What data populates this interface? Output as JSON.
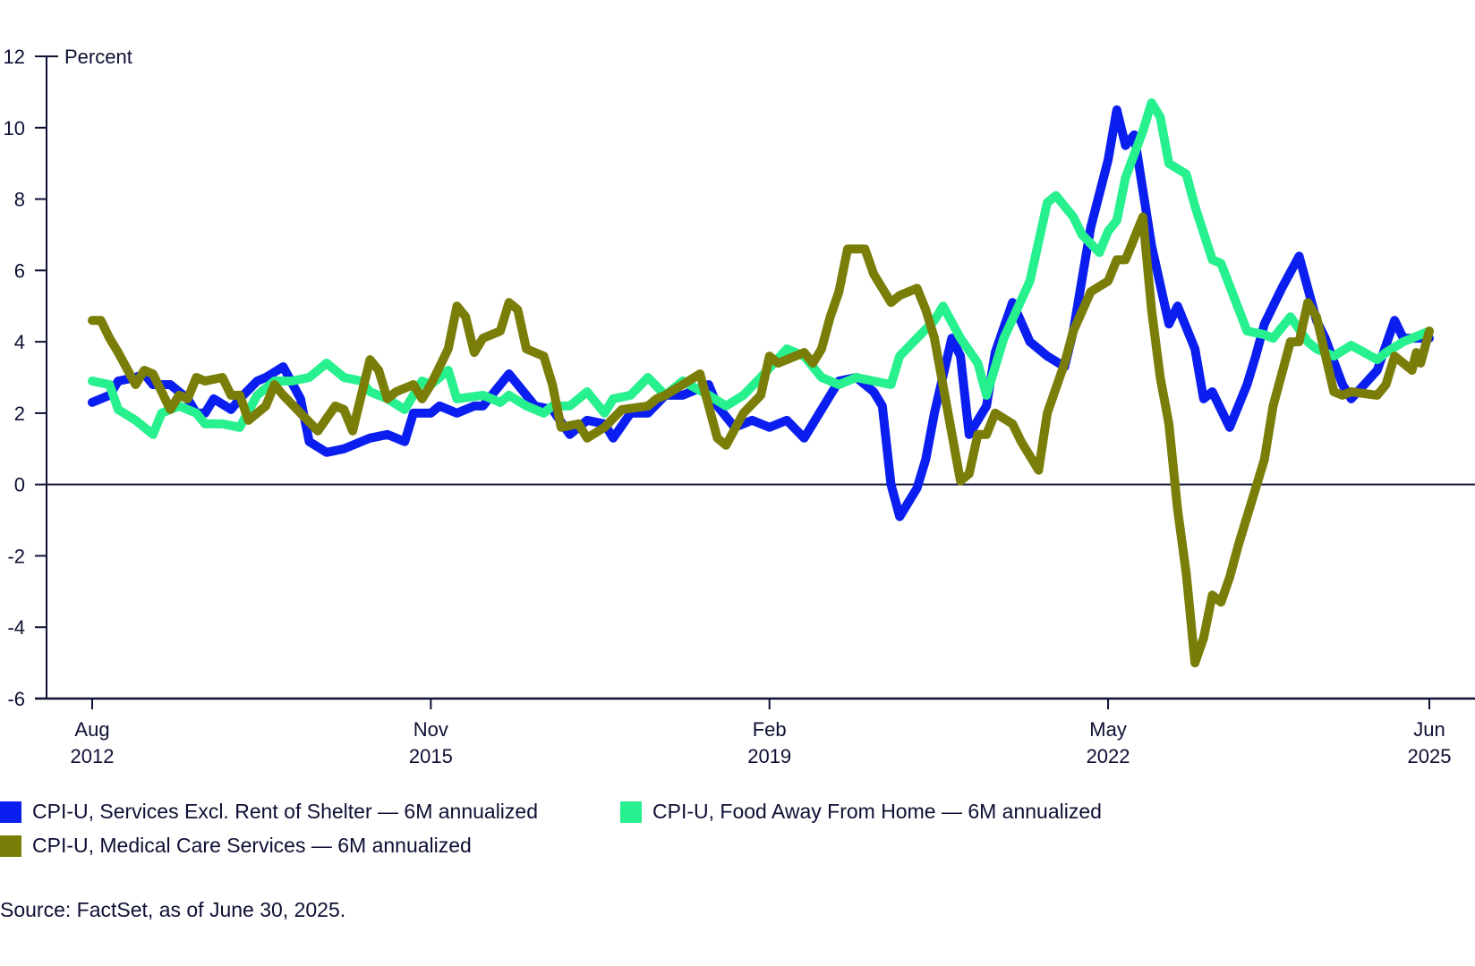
{
  "chart_data": {
    "type": "line",
    "title": "",
    "ylabel": "Percent",
    "xlabel": "",
    "ylim": [
      -6,
      12
    ],
    "yticks": [
      12,
      10,
      8,
      6,
      4,
      2,
      0,
      -2,
      -4,
      -6
    ],
    "x_unit": "months since Aug 2012",
    "xlim": [
      0,
      154
    ],
    "xticks": [
      {
        "x": 0,
        "line1": "Aug",
        "line2": "2012"
      },
      {
        "x": 39,
        "line1": "Nov",
        "line2": "2015"
      },
      {
        "x": 78,
        "line1": "Feb",
        "line2": "2019"
      },
      {
        "x": 117,
        "line1": "May",
        "line2": "2022"
      },
      {
        "x": 154,
        "line1": "Jun",
        "line2": "2025"
      }
    ],
    "zero_line": true,
    "grid": false,
    "legend_position": "bottom",
    "series": [
      {
        "name": "CPI-U, Services Excl. Rent of Shelter — 6M annualized",
        "color": "#0a1ef0",
        "points": [
          [
            0,
            2.3
          ],
          [
            2,
            2.5
          ],
          [
            3,
            2.9
          ],
          [
            5,
            3.0
          ],
          [
            6,
            3.1
          ],
          [
            7,
            2.8
          ],
          [
            9,
            2.8
          ],
          [
            11,
            2.4
          ],
          [
            12,
            2.0
          ],
          [
            13,
            2.0
          ],
          [
            14,
            2.4
          ],
          [
            16,
            2.1
          ],
          [
            17,
            2.4
          ],
          [
            19,
            2.9
          ],
          [
            20,
            3.0
          ],
          [
            22,
            3.3
          ],
          [
            24,
            2.4
          ],
          [
            25,
            1.2
          ],
          [
            27,
            0.9
          ],
          [
            29,
            1.0
          ],
          [
            31,
            1.2
          ],
          [
            32,
            1.3
          ],
          [
            34,
            1.4
          ],
          [
            36,
            1.2
          ],
          [
            37,
            2.0
          ],
          [
            39,
            2.0
          ],
          [
            40,
            2.2
          ],
          [
            42,
            2.0
          ],
          [
            44,
            2.2
          ],
          [
            45,
            2.2
          ],
          [
            47,
            2.8
          ],
          [
            48,
            3.1
          ],
          [
            50,
            2.5
          ],
          [
            51,
            2.2
          ],
          [
            53,
            2.1
          ],
          [
            55,
            1.4
          ],
          [
            57,
            1.8
          ],
          [
            59,
            1.7
          ],
          [
            60,
            1.3
          ],
          [
            62,
            2.0
          ],
          [
            64,
            2.0
          ],
          [
            66,
            2.5
          ],
          [
            68,
            2.5
          ],
          [
            71,
            2.8
          ],
          [
            72,
            2.2
          ],
          [
            74,
            1.6
          ],
          [
            76,
            1.8
          ],
          [
            78,
            1.6
          ],
          [
            80,
            1.8
          ],
          [
            82,
            1.3
          ],
          [
            84,
            2.1
          ],
          [
            86,
            2.9
          ],
          [
            88,
            3.0
          ],
          [
            90,
            2.6
          ],
          [
            91,
            2.2
          ],
          [
            92,
            0.0
          ],
          [
            93,
            -0.9
          ],
          [
            95,
            -0.1
          ],
          [
            96,
            0.7
          ],
          [
            97,
            2.0
          ],
          [
            99,
            4.1
          ],
          [
            100,
            3.6
          ],
          [
            101,
            1.4
          ],
          [
            103,
            2.2
          ],
          [
            104,
            3.7
          ],
          [
            106,
            5.1
          ],
          [
            108,
            4.0
          ],
          [
            110,
            3.6
          ],
          [
            112,
            3.3
          ],
          [
            113,
            4.3
          ],
          [
            115,
            7.2
          ],
          [
            117,
            9.1
          ],
          [
            118,
            10.5
          ],
          [
            119,
            9.5
          ],
          [
            120,
            9.8
          ],
          [
            122,
            6.7
          ],
          [
            124,
            4.5
          ],
          [
            125,
            5.0
          ],
          [
            127,
            3.8
          ],
          [
            128,
            2.4
          ],
          [
            129,
            2.6
          ],
          [
            131,
            1.6
          ],
          [
            133,
            2.8
          ],
          [
            134,
            3.6
          ],
          [
            135,
            4.5
          ],
          [
            137,
            5.5
          ],
          [
            139,
            6.4
          ],
          [
            141,
            4.6
          ],
          [
            142,
            4.1
          ],
          [
            144,
            2.8
          ],
          [
            145,
            2.4
          ],
          [
            148,
            3.2
          ],
          [
            150,
            4.6
          ],
          [
            151,
            4.1
          ],
          [
            154,
            4.1
          ]
        ]
      },
      {
        "name": "CPI-U, Food Away From Home — 6M annualized",
        "color": "#27f08e",
        "points": [
          [
            0,
            2.9
          ],
          [
            2,
            2.8
          ],
          [
            3,
            2.1
          ],
          [
            5,
            1.8
          ],
          [
            7,
            1.4
          ],
          [
            8,
            2.0
          ],
          [
            10,
            2.2
          ],
          [
            12,
            2.0
          ],
          [
            13,
            1.7
          ],
          [
            15,
            1.7
          ],
          [
            17,
            1.6
          ],
          [
            19,
            2.5
          ],
          [
            21,
            2.9
          ],
          [
            23,
            2.9
          ],
          [
            25,
            3.0
          ],
          [
            27,
            3.4
          ],
          [
            29,
            3.0
          ],
          [
            31,
            2.9
          ],
          [
            32,
            2.6
          ],
          [
            34,
            2.4
          ],
          [
            36,
            2.1
          ],
          [
            38,
            2.9
          ],
          [
            39,
            2.8
          ],
          [
            41,
            3.2
          ],
          [
            42,
            2.4
          ],
          [
            45,
            2.5
          ],
          [
            47,
            2.3
          ],
          [
            48,
            2.5
          ],
          [
            50,
            2.2
          ],
          [
            52,
            2.0
          ],
          [
            53,
            2.2
          ],
          [
            55,
            2.2
          ],
          [
            57,
            2.6
          ],
          [
            59,
            2.0
          ],
          [
            60,
            2.4
          ],
          [
            62,
            2.5
          ],
          [
            64,
            3.0
          ],
          [
            66,
            2.5
          ],
          [
            68,
            2.9
          ],
          [
            71,
            2.5
          ],
          [
            73,
            2.2
          ],
          [
            75,
            2.5
          ],
          [
            77,
            3.0
          ],
          [
            80,
            3.8
          ],
          [
            82,
            3.6
          ],
          [
            84,
            3.0
          ],
          [
            86,
            2.8
          ],
          [
            88,
            3.0
          ],
          [
            90,
            2.9
          ],
          [
            92,
            2.8
          ],
          [
            93,
            3.6
          ],
          [
            95,
            4.1
          ],
          [
            97,
            4.6
          ],
          [
            98,
            5.0
          ],
          [
            100,
            4.1
          ],
          [
            102,
            3.4
          ],
          [
            103,
            2.5
          ],
          [
            105,
            4.1
          ],
          [
            108,
            5.7
          ],
          [
            110,
            7.9
          ],
          [
            111,
            8.1
          ],
          [
            113,
            7.5
          ],
          [
            114,
            7.0
          ],
          [
            116,
            6.5
          ],
          [
            117,
            7.1
          ],
          [
            118,
            7.4
          ],
          [
            119,
            8.6
          ],
          [
            121,
            9.9
          ],
          [
            122,
            10.7
          ],
          [
            123,
            10.3
          ],
          [
            124,
            9.0
          ],
          [
            126,
            8.7
          ],
          [
            127,
            7.8
          ],
          [
            129,
            6.3
          ],
          [
            130,
            6.2
          ],
          [
            133,
            4.3
          ],
          [
            135,
            4.2
          ],
          [
            136,
            4.1
          ],
          [
            138,
            4.7
          ],
          [
            140,
            4.0
          ],
          [
            141,
            3.8
          ],
          [
            143,
            3.6
          ],
          [
            145,
            3.9
          ],
          [
            148,
            3.5
          ],
          [
            149,
            3.7
          ],
          [
            151,
            4.0
          ],
          [
            154,
            4.3
          ]
        ]
      },
      {
        "name": "CPI-U, Medical Care Services — 6M annualized",
        "color": "#7a7d08",
        "points": [
          [
            0,
            4.6
          ],
          [
            1,
            4.6
          ],
          [
            2,
            4.1
          ],
          [
            3,
            3.7
          ],
          [
            5,
            2.8
          ],
          [
            6,
            3.2
          ],
          [
            7,
            3.1
          ],
          [
            9,
            2.1
          ],
          [
            10,
            2.5
          ],
          [
            11,
            2.4
          ],
          [
            12,
            3.0
          ],
          [
            13,
            2.9
          ],
          [
            15,
            3.0
          ],
          [
            16,
            2.5
          ],
          [
            17,
            2.5
          ],
          [
            18,
            1.8
          ],
          [
            20,
            2.2
          ],
          [
            21,
            2.8
          ],
          [
            22,
            2.5
          ],
          [
            24,
            2.0
          ],
          [
            26,
            1.5
          ],
          [
            28,
            2.2
          ],
          [
            29,
            2.1
          ],
          [
            30,
            1.5
          ],
          [
            32,
            3.5
          ],
          [
            33,
            3.2
          ],
          [
            34,
            2.4
          ],
          [
            35,
            2.6
          ],
          [
            37,
            2.8
          ],
          [
            38,
            2.4
          ],
          [
            39,
            2.8
          ],
          [
            41,
            3.8
          ],
          [
            42,
            5.0
          ],
          [
            43,
            4.7
          ],
          [
            44,
            3.7
          ],
          [
            45,
            4.1
          ],
          [
            47,
            4.3
          ],
          [
            48,
            5.1
          ],
          [
            49,
            4.9
          ],
          [
            50,
            3.8
          ],
          [
            52,
            3.6
          ],
          [
            53,
            2.8
          ],
          [
            54,
            1.6
          ],
          [
            56,
            1.7
          ],
          [
            57,
            1.3
          ],
          [
            59,
            1.6
          ],
          [
            61,
            2.1
          ],
          [
            64,
            2.2
          ],
          [
            65,
            2.4
          ],
          [
            66,
            2.5
          ],
          [
            68,
            2.8
          ],
          [
            70,
            3.1
          ],
          [
            72,
            1.3
          ],
          [
            73,
            1.1
          ],
          [
            75,
            2.0
          ],
          [
            77,
            2.5
          ],
          [
            78,
            3.6
          ],
          [
            79,
            3.4
          ],
          [
            82,
            3.7
          ],
          [
            83,
            3.4
          ],
          [
            84,
            3.8
          ],
          [
            85,
            4.7
          ],
          [
            86,
            5.4
          ],
          [
            87,
            6.6
          ],
          [
            89,
            6.6
          ],
          [
            90,
            5.9
          ],
          [
            92,
            5.1
          ],
          [
            93,
            5.3
          ],
          [
            95,
            5.5
          ],
          [
            96,
            4.9
          ],
          [
            97,
            4.1
          ],
          [
            100,
            0.1
          ],
          [
            101,
            0.3
          ],
          [
            102,
            1.4
          ],
          [
            103,
            1.4
          ],
          [
            104,
            2.0
          ],
          [
            106,
            1.7
          ],
          [
            107,
            1.2
          ],
          [
            109,
            0.4
          ],
          [
            110,
            2.0
          ],
          [
            112,
            3.4
          ],
          [
            113,
            4.3
          ],
          [
            115,
            5.4
          ],
          [
            117,
            5.7
          ],
          [
            118,
            6.3
          ],
          [
            119,
            6.3
          ],
          [
            121,
            7.5
          ],
          [
            122,
            4.9
          ],
          [
            123,
            3.0
          ],
          [
            124,
            1.7
          ],
          [
            125,
            -0.7
          ],
          [
            126,
            -2.5
          ],
          [
            127,
            -5.0
          ],
          [
            128,
            -4.3
          ],
          [
            129,
            -3.1
          ],
          [
            130,
            -3.3
          ],
          [
            131,
            -2.6
          ],
          [
            132,
            -1.7
          ],
          [
            134,
            -0.1
          ],
          [
            135,
            0.7
          ],
          [
            136,
            2.2
          ],
          [
            138,
            4.0
          ],
          [
            139,
            4.0
          ],
          [
            140,
            5.1
          ],
          [
            141,
            4.7
          ],
          [
            143,
            2.6
          ],
          [
            144,
            2.5
          ],
          [
            145,
            2.6
          ],
          [
            148,
            2.5
          ],
          [
            149,
            2.8
          ],
          [
            150,
            3.6
          ],
          [
            152,
            3.2
          ],
          [
            152.5,
            3.7
          ],
          [
            153,
            3.4
          ],
          [
            154,
            4.3
          ]
        ]
      }
    ]
  },
  "legend": [
    {
      "label": "CPI-U, Services Excl. Rent of Shelter — 6M annualized",
      "color": "#0a1ef0"
    },
    {
      "label": "CPI-U, Food Away From Home — 6M annualized",
      "color": "#27f08e"
    },
    {
      "label": "CPI-U, Medical Care Services — 6M annualized",
      "color": "#7a7d08"
    }
  ],
  "source": "Source: FactSet, as of June 30, 2025."
}
